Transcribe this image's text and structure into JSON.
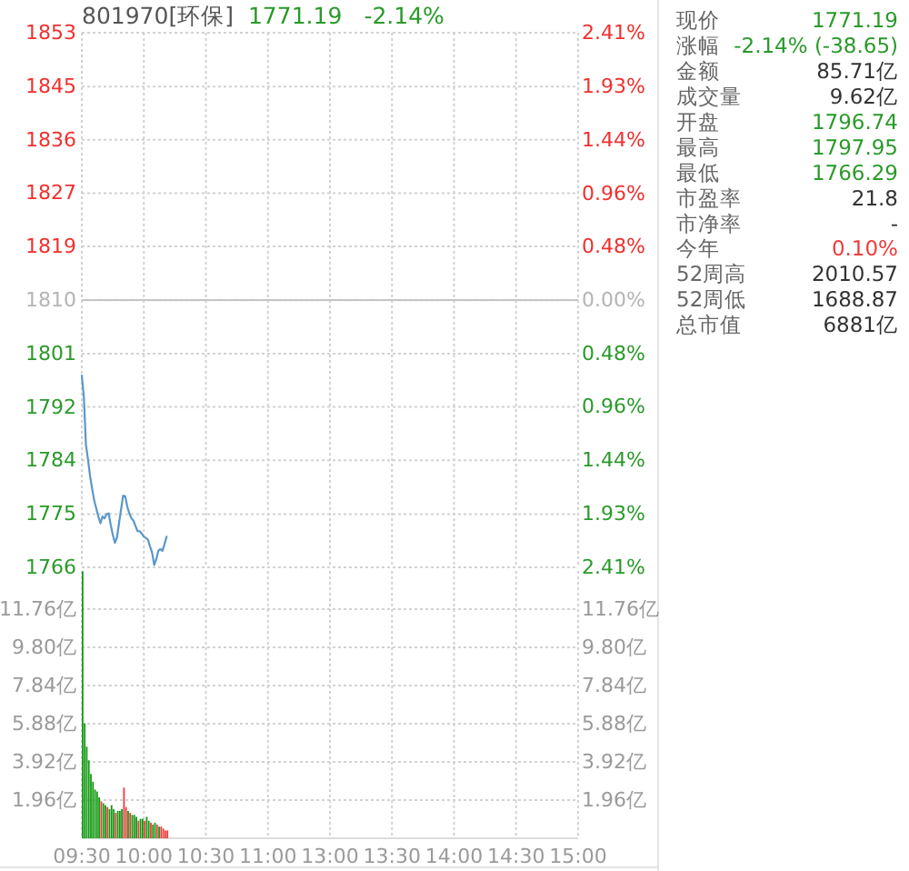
{
  "chart_data": [
    {
      "type": "line",
      "title": "801970[环保]",
      "annotations": [
        "1771.19",
        "-2.14%"
      ],
      "categories": [
        null,
        null,
        null,
        null,
        null,
        null,
        null,
        null,
        null,
        null,
        null,
        null,
        null,
        null,
        null,
        null,
        null,
        null,
        null,
        null,
        null,
        null,
        null,
        null,
        null,
        null,
        null,
        null,
        null,
        null,
        null,
        null,
        null,
        null,
        null,
        null,
        null,
        null,
        null,
        null,
        null,
        null,
        null,
        null,
        null,
        null,
        null,
        null,
        null,
        null,
        null,
        null,
        null,
        null,
        null,
        null,
        null,
        null,
        null,
        null,
        null,
        null,
        null,
        null,
        null,
        null,
        null,
        null,
        null,
        null,
        null,
        null,
        null,
        null,
        null,
        null,
        null,
        null,
        null,
        null,
        null,
        null,
        null,
        null,
        null,
        null,
        null,
        null,
        null,
        null,
        null,
        null,
        null,
        null,
        null,
        null,
        null,
        null,
        null,
        null,
        null,
        null,
        null,
        null,
        null,
        null,
        null,
        null,
        null,
        null,
        null,
        null,
        null,
        null,
        null,
        null,
        null,
        null,
        null,
        null,
        null,
        null,
        null,
        null,
        null,
        null,
        null,
        null,
        null,
        null,
        null,
        null,
        null,
        null,
        null,
        null,
        null,
        null,
        null,
        null,
        null,
        null,
        null,
        null,
        null,
        null,
        null,
        null,
        null,
        null,
        null,
        null,
        null,
        null,
        null,
        null,
        null,
        null,
        null,
        null,
        null,
        null,
        null,
        null,
        null,
        null,
        null,
        null,
        null,
        null,
        null,
        null,
        null,
        null,
        null,
        null,
        null,
        null,
        null,
        null,
        null,
        null,
        null,
        null,
        null,
        null,
        null,
        null,
        null,
        null,
        null,
        null,
        null,
        null,
        null,
        null,
        null,
        null,
        null,
        null,
        null,
        null,
        null,
        null,
        null,
        null,
        null,
        null,
        null,
        null,
        null,
        null,
        null,
        null,
        null,
        null,
        null,
        null,
        null,
        null,
        null,
        null,
        null,
        null,
        null,
        null,
        null,
        null,
        null,
        null,
        null,
        null,
        null,
        null,
        null,
        null,
        null,
        null,
        null,
        null,
        null
      ],
      "values": [
        1797.5,
        1794.0,
        1786.2,
        1783.8,
        1781.1,
        1779.0,
        1777.1,
        1775.8,
        1774.5,
        1773.4,
        1774.5,
        1774.2,
        1774.9,
        1775.0,
        1773.1,
        1771.5,
        1770.2,
        1771.1,
        1773.4,
        1775.7,
        1777.9,
        1777.8,
        1776.1,
        1775.0,
        1774.2,
        1773.8,
        1772.9,
        1772.1,
        1772.1,
        1771.7,
        1771.2,
        1771.0,
        1770.7,
        1769.6,
        1768.6,
        1766.6,
        1767.5,
        1768.9,
        1769.2,
        1768.9,
        1770.0,
        1771.2,
        null,
        null,
        null,
        null,
        null,
        null,
        null,
        null,
        null,
        null,
        null,
        null,
        null,
        null,
        null,
        null,
        null,
        null,
        null,
        null,
        null,
        null,
        null,
        null,
        null,
        null,
        null,
        null,
        null,
        null,
        null,
        null,
        null,
        null,
        null,
        null,
        null,
        null,
        null,
        null,
        null,
        null,
        null,
        null,
        null,
        null,
        null,
        null,
        null,
        null,
        null,
        null,
        null,
        null,
        null,
        null,
        null,
        null,
        null,
        null,
        null,
        null,
        null,
        null,
        null,
        null,
        null,
        null,
        null,
        null,
        null,
        null,
        null,
        null,
        null,
        null,
        null,
        null,
        null,
        null,
        null,
        null,
        null,
        null,
        null,
        null,
        null,
        null,
        null,
        null,
        null,
        null,
        null,
        null,
        null,
        null,
        null,
        null,
        null,
        null,
        null,
        null,
        null,
        null,
        null,
        null,
        null,
        null,
        null,
        null,
        null,
        null,
        null,
        null,
        null,
        null,
        null,
        null,
        null,
        null,
        null,
        null,
        null,
        null,
        null,
        null,
        null,
        null,
        null,
        null,
        null,
        null,
        null,
        null,
        null,
        null,
        null,
        null,
        null,
        null,
        null,
        null,
        null,
        null,
        null,
        null,
        null,
        null,
        null,
        null,
        null,
        null,
        null,
        null,
        null,
        null,
        null,
        null,
        null,
        null,
        null,
        null,
        null,
        null,
        null,
        null,
        null,
        null,
        null,
        null,
        null,
        null,
        null,
        null,
        null,
        null,
        null,
        null,
        null,
        null,
        null,
        null,
        null,
        null,
        null,
        null,
        null,
        null,
        null,
        null,
        null,
        null,
        null,
        null,
        null,
        null,
        null,
        null,
        null
      ],
      "color": "#5b97c9",
      "marker": "none",
      "line_style": "solid",
      "grid": true,
      "tick_labels": "y",
      "ylim": [
        1766.2,
        1853.5
      ],
      "yticks": [
        {
          "value": 1766.2,
          "label": "1766"
        },
        {
          "value": 1774.9,
          "label": "1775"
        },
        {
          "value": 1783.7,
          "label": "1784"
        },
        {
          "value": 1792.4,
          "label": "1792"
        },
        {
          "value": 1801.1,
          "label": "1801"
        },
        {
          "value": 1809.8,
          "label": "1810"
        },
        {
          "value": 1818.6,
          "label": "1819"
        },
        {
          "value": 1827.3,
          "label": "1827"
        },
        {
          "value": 1836.0,
          "label": "1836"
        },
        {
          "value": 1844.7,
          "label": "1845"
        },
        {
          "value": 1853.5,
          "label": "1853"
        }
      ],
      "y2lim": [
        -2.41,
        2.41
      ],
      "y2ticks": [
        {
          "value": -2.41,
          "label": "2.41%"
        },
        {
          "value": -1.93,
          "label": "1.93%"
        },
        {
          "value": -1.44,
          "label": "1.44%"
        },
        {
          "value": -0.96,
          "label": "0.96%"
        },
        {
          "value": -0.48,
          "label": "0.48%"
        },
        {
          "value": 0,
          "label": "0.00%"
        },
        {
          "value": 0.48,
          "label": "0.48%"
        },
        {
          "value": 0.96,
          "label": "0.96%"
        },
        {
          "value": 1.44,
          "label": "1.44%"
        },
        {
          "value": 1.93,
          "label": "1.93%"
        },
        {
          "value": 2.41,
          "label": "2.41%"
        }
      ],
      "ref_lines": [
        {
          "axis": "y2",
          "value": 0,
          "color": "#c4c4c4"
        }
      ]
    },
    {
      "type": "bar",
      "grid": true,
      "categories": [
        "09:30",
        null,
        null,
        null,
        null,
        null,
        null,
        null,
        null,
        null,
        null,
        null,
        null,
        null,
        null,
        null,
        null,
        null,
        null,
        null,
        null,
        null,
        null,
        null,
        null,
        null,
        null,
        null,
        null,
        null,
        "10:00",
        null,
        null,
        null,
        null,
        null,
        null,
        null,
        null,
        null,
        null,
        null,
        null,
        null,
        null,
        null,
        null,
        null,
        null,
        null,
        null,
        null,
        null,
        null,
        null,
        null,
        null,
        null,
        null,
        null,
        "10:30",
        null,
        null,
        null,
        null,
        null,
        null,
        null,
        null,
        null,
        null,
        null,
        null,
        null,
        null,
        null,
        null,
        null,
        null,
        null,
        null,
        null,
        null,
        null,
        null,
        null,
        null,
        null,
        null,
        null,
        "11:00",
        null,
        null,
        null,
        null,
        null,
        null,
        null,
        null,
        null,
        null,
        null,
        null,
        null,
        null,
        null,
        null,
        null,
        null,
        null,
        null,
        null,
        null,
        null,
        null,
        null,
        null,
        null,
        null,
        null,
        "13:00",
        null,
        null,
        null,
        null,
        null,
        null,
        null,
        null,
        null,
        null,
        null,
        null,
        null,
        null,
        null,
        null,
        null,
        null,
        null,
        null,
        null,
        null,
        null,
        null,
        null,
        null,
        null,
        null,
        null,
        "13:30",
        null,
        null,
        null,
        null,
        null,
        null,
        null,
        null,
        null,
        null,
        null,
        null,
        null,
        null,
        null,
        null,
        null,
        null,
        null,
        null,
        null,
        null,
        null,
        null,
        null,
        null,
        null,
        null,
        null,
        "14:00",
        null,
        null,
        null,
        null,
        null,
        null,
        null,
        null,
        null,
        null,
        null,
        null,
        null,
        null,
        null,
        null,
        null,
        null,
        null,
        null,
        null,
        null,
        null,
        null,
        null,
        null,
        null,
        null,
        null,
        "14:30",
        null,
        null,
        null,
        null,
        null,
        null,
        null,
        null,
        null,
        null,
        null,
        null,
        null,
        null,
        null,
        null,
        null,
        null,
        null,
        null,
        null,
        null,
        null,
        null,
        null,
        null,
        null,
        null,
        null,
        "15:00"
      ],
      "values": [
        13.7,
        5.9,
        4.7,
        4.0,
        3.3,
        2.9,
        2.5,
        2.4,
        2.1,
        1.9,
        1.8,
        1.7,
        1.6,
        1.5,
        1.7,
        1.5,
        1.3,
        1.4,
        1.4,
        1.5,
        2.6,
        1.6,
        1.4,
        1.3,
        1.2,
        1.2,
        1.1,
        0.9,
        1.0,
        1.0,
        0.9,
        1.1,
        0.9,
        0.8,
        0.7,
        0.8,
        0.7,
        0.6,
        0.6,
        0.5,
        0.4,
        0.4,
        null,
        null,
        null,
        null,
        null,
        null,
        null,
        null,
        null,
        null,
        null,
        null,
        null,
        null,
        null,
        null,
        null,
        null,
        null,
        null,
        null,
        null,
        null,
        null,
        null,
        null,
        null,
        null,
        null,
        null,
        null,
        null,
        null,
        null,
        null,
        null,
        null,
        null,
        null,
        null,
        null,
        null,
        null,
        null,
        null,
        null,
        null,
        null,
        null,
        null,
        null,
        null,
        null,
        null,
        null,
        null,
        null,
        null,
        null,
        null,
        null,
        null,
        null,
        null,
        null,
        null,
        null,
        null,
        null,
        null,
        null,
        null,
        null,
        null,
        null,
        null,
        null,
        null,
        null,
        null,
        null,
        null,
        null,
        null,
        null,
        null,
        null,
        null,
        null,
        null,
        null,
        null,
        null,
        null,
        null,
        null,
        null,
        null,
        null,
        null,
        null,
        null,
        null,
        null,
        null,
        null,
        null,
        null,
        null,
        null,
        null,
        null,
        null,
        null,
        null,
        null,
        null,
        null,
        null,
        null,
        null,
        null,
        null,
        null,
        null,
        null,
        null,
        null,
        null,
        null,
        null,
        null,
        null,
        null,
        null,
        null,
        null,
        null,
        null,
        null,
        null,
        null,
        null,
        null,
        null,
        null,
        null,
        null,
        null,
        null,
        null,
        null,
        null,
        null,
        null,
        null,
        null,
        null,
        null,
        null,
        null,
        null,
        null,
        null,
        null,
        null,
        null,
        null,
        null,
        null,
        null,
        null,
        null,
        null,
        null,
        null,
        null,
        null,
        null,
        null,
        null,
        null,
        null,
        null,
        null,
        null,
        null,
        null,
        null,
        null,
        null,
        null,
        null,
        null,
        null,
        null,
        null,
        null,
        null
      ],
      "colors": [
        "#119911",
        "#119911",
        "#119911",
        "#119911",
        "#119911",
        "#119911",
        "#119911",
        "#119911",
        "#119911",
        "#f03a3a",
        "#119911",
        "#119911",
        "#f03a3a",
        "#119911",
        "#119911",
        "#119911",
        "#f03a3a",
        "#119911",
        "#119911",
        "#119911",
        "#f03a3a",
        "#f03a3a",
        "#119911",
        "#f03a3a",
        "#119911",
        "#119911",
        "#119911",
        "#f03a3a",
        "#119911",
        "#119911",
        "#f03a3a",
        "#119911",
        "#119911",
        "#f03a3a",
        "#119911",
        "#119911",
        "#f03a3a",
        "#119911",
        "#f03a3a",
        "#f03a3a",
        "#f03a3a",
        "#f03a3a",
        null,
        null,
        null,
        null,
        null,
        null,
        null,
        null,
        null,
        null,
        null,
        null,
        null,
        null,
        null,
        null,
        null,
        null,
        null,
        null,
        null,
        null,
        null,
        null,
        null,
        null,
        null,
        null,
        null,
        null,
        null,
        null,
        null,
        null,
        null,
        null,
        null,
        null,
        null,
        null,
        null,
        null,
        null,
        null,
        null,
        null,
        null,
        null,
        null,
        null,
        null,
        null,
        null,
        null,
        null,
        null,
        null,
        null,
        null,
        null,
        null,
        null,
        null,
        null,
        null,
        null,
        null,
        null,
        null,
        null,
        null,
        null,
        null,
        null,
        null,
        null,
        null,
        null,
        null,
        null,
        null,
        null,
        null,
        null,
        null,
        null,
        null,
        null,
        null,
        null,
        null,
        null,
        null,
        null,
        null,
        null,
        null,
        null,
        null,
        null,
        null,
        null,
        null,
        null,
        null,
        null,
        null,
        null,
        null,
        null,
        null,
        null,
        null,
        null,
        null,
        null,
        null,
        null,
        null,
        null,
        null,
        null,
        null,
        null,
        null,
        null,
        null,
        null,
        null,
        null,
        null,
        null,
        null,
        null,
        null,
        null,
        null,
        null,
        null,
        null,
        null,
        null,
        null,
        null,
        null,
        null,
        null,
        null,
        null,
        null,
        null,
        null,
        null,
        null,
        null,
        null,
        null,
        null,
        null,
        null,
        null,
        null,
        null,
        null,
        null,
        null,
        null,
        null,
        null,
        null,
        null,
        null,
        null,
        null,
        null,
        null,
        null,
        null,
        null,
        null,
        null,
        null,
        null,
        null,
        null,
        null,
        null,
        null,
        null,
        null,
        null,
        null,
        null,
        null,
        null,
        null,
        null,
        null,
        null
      ],
      "ylim": [
        0,
        13.72
      ],
      "yticks": [
        {
          "value": 1.96,
          "label": "1.96亿"
        },
        {
          "value": 3.92,
          "label": "3.92亿"
        },
        {
          "value": 5.88,
          "label": "5.88亿"
        },
        {
          "value": 7.84,
          "label": "7.84亿"
        },
        {
          "value": 9.8,
          "label": "9.80亿"
        },
        {
          "value": 11.76,
          "label": "11.76亿"
        }
      ],
      "y2lim": [
        0,
        13.72
      ],
      "y2ticks": [
        {
          "value": 1.96,
          "label": "1.96亿"
        },
        {
          "value": 3.92,
          "label": "3.92亿"
        },
        {
          "value": 5.88,
          "label": "5.88亿"
        },
        {
          "value": 7.84,
          "label": "7.84亿"
        },
        {
          "value": 9.8,
          "label": "9.80亿"
        },
        {
          "value": 11.76,
          "label": "11.76亿"
        }
      ]
    },
    {
      "type": "other",
      "categories": [
        "现价",
        "涨幅",
        "金额",
        "成交量",
        "开盘",
        "最高",
        "最低",
        "市盈率",
        "市净率",
        "今年",
        "52周高",
        "52周低",
        "总市值"
      ],
      "value_labels": [
        "1771.19",
        "-2.14% (-38.65)",
        "85.71亿",
        "9.62亿",
        "1796.74",
        "1797.95",
        "1766.29",
        "21.8",
        "-",
        "0.10%",
        "2010.57",
        "1688.87",
        "6881亿"
      ],
      "colors": [
        "#2a9a2a",
        "#2a9a2a",
        "#333333",
        "#333333",
        "#2a9a2a",
        "#2a9a2a",
        "#2a9a2a",
        "#333333",
        "#333333",
        "#f03a3a",
        "#333333",
        "#333333",
        "#333333"
      ]
    }
  ]
}
